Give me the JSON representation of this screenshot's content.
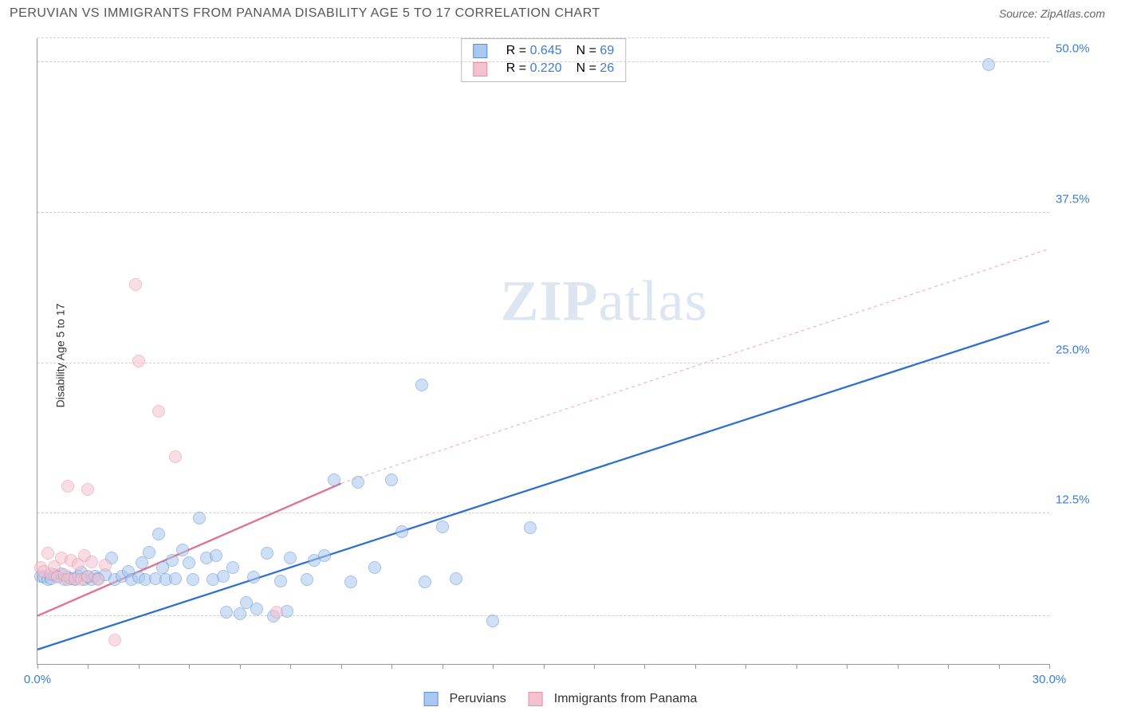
{
  "title": "PERUVIAN VS IMMIGRANTS FROM PANAMA DISABILITY AGE 5 TO 17 CORRELATION CHART",
  "source": "Source: ZipAtlas.com",
  "ylabel": "Disability Age 5 to 17",
  "watermark_a": "ZIP",
  "watermark_b": "atlas",
  "chart": {
    "type": "scatter_with_trend",
    "xlim": [
      0,
      30
    ],
    "ylim": [
      0,
      52
    ],
    "x_tick_step": 1.5,
    "x_labels": [
      {
        "v": 0,
        "t": "0.0%"
      },
      {
        "v": 30,
        "t": "30.0%"
      }
    ],
    "y_ticks": [
      {
        "v": 12.5,
        "t": "12.5%"
      },
      {
        "v": 25.0,
        "t": "25.0%"
      },
      {
        "v": 37.5,
        "t": "37.5%"
      },
      {
        "v": 50.0,
        "t": "50.0%"
      }
    ],
    "y_extra_grid": [
      4,
      52
    ],
    "grid_color": "#d7d7d7",
    "background": "#ffffff",
    "axis_color": "#999999",
    "tick_label_color": "#3b7dd8",
    "point_radius": 8,
    "point_opacity": 0.55,
    "series": [
      {
        "name": "Peruvians",
        "color_fill": "#a9c7ef",
        "color_stroke": "#5a8fd6",
        "trend": {
          "x1": 0,
          "y1": 1.2,
          "x2": 30,
          "y2": 28.5,
          "width": 2.3,
          "dash": "none",
          "color": "#2e6fd1"
        },
        "stats": {
          "R": "0.645",
          "N": "69"
        },
        "points": [
          [
            0.1,
            7.3
          ],
          [
            0.2,
            7.2
          ],
          [
            0.3,
            7.0
          ],
          [
            0.4,
            7.1
          ],
          [
            0.5,
            7.4
          ],
          [
            0.6,
            7.3
          ],
          [
            0.7,
            7.5
          ],
          [
            0.8,
            7.0
          ],
          [
            0.9,
            7.2
          ],
          [
            1.0,
            7.1
          ],
          [
            1.1,
            7.0
          ],
          [
            1.2,
            7.3
          ],
          [
            1.3,
            7.6
          ],
          [
            1.4,
            7.0
          ],
          [
            1.5,
            7.2
          ],
          [
            1.6,
            7.0
          ],
          [
            1.7,
            7.3
          ],
          [
            1.8,
            7.1
          ],
          [
            2.0,
            7.4
          ],
          [
            2.2,
            8.8
          ],
          [
            2.3,
            7.0
          ],
          [
            2.5,
            7.3
          ],
          [
            2.7,
            7.7
          ],
          [
            2.8,
            7.0
          ],
          [
            3.0,
            7.2
          ],
          [
            3.1,
            8.4
          ],
          [
            3.2,
            7.0
          ],
          [
            3.3,
            9.3
          ],
          [
            3.5,
            7.1
          ],
          [
            3.6,
            10.8
          ],
          [
            3.7,
            8.0
          ],
          [
            3.8,
            7.0
          ],
          [
            4.0,
            8.6
          ],
          [
            4.1,
            7.1
          ],
          [
            4.3,
            9.5
          ],
          [
            4.5,
            8.4
          ],
          [
            4.6,
            7.0
          ],
          [
            4.8,
            12.1
          ],
          [
            5.0,
            8.8
          ],
          [
            5.2,
            7.0
          ],
          [
            5.3,
            9.0
          ],
          [
            5.5,
            7.3
          ],
          [
            5.6,
            4.3
          ],
          [
            5.8,
            8.0
          ],
          [
            6.0,
            4.2
          ],
          [
            6.2,
            5.1
          ],
          [
            6.4,
            7.2
          ],
          [
            6.5,
            4.6
          ],
          [
            6.8,
            9.2
          ],
          [
            7.0,
            4.0
          ],
          [
            7.2,
            6.9
          ],
          [
            7.4,
            4.4
          ],
          [
            7.5,
            8.8
          ],
          [
            8.0,
            7.0
          ],
          [
            8.2,
            8.6
          ],
          [
            8.5,
            9.0
          ],
          [
            8.8,
            15.3
          ],
          [
            9.3,
            6.8
          ],
          [
            9.5,
            15.1
          ],
          [
            10.0,
            8.0
          ],
          [
            10.5,
            15.3
          ],
          [
            10.8,
            11.0
          ],
          [
            11.4,
            23.2
          ],
          [
            11.5,
            6.8
          ],
          [
            12.0,
            11.4
          ],
          [
            12.4,
            7.1
          ],
          [
            13.5,
            3.6
          ],
          [
            14.6,
            11.3
          ],
          [
            28.2,
            49.8
          ]
        ]
      },
      {
        "name": "Immigrants from Panama",
        "color_fill": "#f4c2cf",
        "color_stroke": "#e78fa7",
        "trend_solid": {
          "x1": 0,
          "y1": 4.0,
          "x2": 9.0,
          "y2": 15.0,
          "width": 2.3,
          "color": "#e36f8e"
        },
        "trend_dash": {
          "x1": 9.0,
          "y1": 15.0,
          "x2": 30,
          "y2": 34.5,
          "width": 1.2,
          "color": "#f0b3c2"
        },
        "stats": {
          "R": "0.220",
          "N": "26"
        },
        "points": [
          [
            0.1,
            8.0
          ],
          [
            0.2,
            7.7
          ],
          [
            0.3,
            9.2
          ],
          [
            0.4,
            7.5
          ],
          [
            0.5,
            8.1
          ],
          [
            0.6,
            7.2
          ],
          [
            0.7,
            8.8
          ],
          [
            0.8,
            7.4
          ],
          [
            0.9,
            7.0
          ],
          [
            1.0,
            8.6
          ],
          [
            1.1,
            7.1
          ],
          [
            1.2,
            8.3
          ],
          [
            1.3,
            7.0
          ],
          [
            1.4,
            9.0
          ],
          [
            1.5,
            7.3
          ],
          [
            1.6,
            8.5
          ],
          [
            1.8,
            7.0
          ],
          [
            2.0,
            8.2
          ],
          [
            0.9,
            14.8
          ],
          [
            1.5,
            14.5
          ],
          [
            2.3,
            2.0
          ],
          [
            2.9,
            31.5
          ],
          [
            3.0,
            25.2
          ],
          [
            3.6,
            21.0
          ],
          [
            4.1,
            17.2
          ],
          [
            7.1,
            4.3
          ]
        ]
      }
    ]
  },
  "legend": {
    "items": [
      {
        "label": "Peruvians",
        "fill": "#a9c7ef",
        "stroke": "#5a8fd6"
      },
      {
        "label": "Immigrants from Panama",
        "fill": "#f4c2cf",
        "stroke": "#e78fa7"
      }
    ]
  }
}
